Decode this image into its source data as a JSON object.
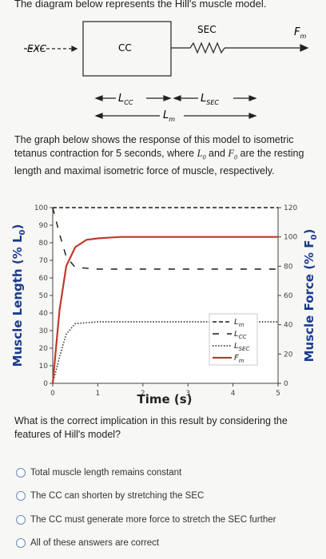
{
  "header": {
    "text": "The diagram below represents the Hill's muscle model."
  },
  "model": {
    "exc": "EXC",
    "cc": "CC",
    "sec": "SEC",
    "fm": "F",
    "fm_sub": "m",
    "lcc": "L",
    "lcc_sub": "CC",
    "lsec": "L",
    "lsec_sub": "SEC",
    "lm": "L",
    "lm_sub": "m"
  },
  "intro": {
    "p1": "The graph below shows the response of this model to isometric tetanus contraction for 5 seconds, where ",
    "l0": "L",
    "l0_sub": "0",
    "and": " and ",
    "f0": "F",
    "f0_sub": "0",
    "p2": " are the resting length and maximal isometric force of muscle, respectively."
  },
  "chart_data": {
    "type": "line",
    "xlabel": "Time (s)",
    "ylabel": "Muscle Length (% L",
    "ylabel_sub": "0",
    "ylabel_close": ")",
    "y2label": "Muscle Force (% F",
    "y2label_sub": "0",
    "y2label_close": ")",
    "xlim": [
      0,
      5
    ],
    "ylim": [
      0,
      100
    ],
    "y2lim": [
      0,
      120
    ],
    "xticks": [
      "0",
      "1",
      "2",
      "3",
      "4",
      "5"
    ],
    "yticks": [
      "0",
      "10",
      "20",
      "30",
      "40",
      "50",
      "60",
      "70",
      "80",
      "90",
      "100"
    ],
    "y2ticks": [
      "0",
      "20",
      "40",
      "60",
      "80",
      "100",
      "120"
    ],
    "series": [
      {
        "name": "L",
        "sub": "m",
        "axis": "left",
        "style": "dashed",
        "color": "#1a1a1a",
        "x": [
          0,
          5
        ],
        "y": [
          100,
          100
        ]
      },
      {
        "name": "L",
        "sub": "CC",
        "axis": "left",
        "style": "dashed",
        "color": "#1a1a1a",
        "x": [
          0,
          0.15,
          0.3,
          0.5,
          1.0,
          2.0,
          3.0,
          4.0,
          5.0
        ],
        "y": [
          100,
          85,
          72,
          66,
          65,
          65,
          65,
          65,
          65
        ]
      },
      {
        "name": "L",
        "sub": "SEC",
        "axis": "left",
        "style": "dotted",
        "color": "#1a1a1a",
        "x": [
          0,
          0.15,
          0.3,
          0.5,
          1.0,
          2.0,
          3.0,
          4.0,
          5.0
        ],
        "y": [
          0,
          15,
          28,
          34,
          35,
          35,
          35,
          35,
          35
        ]
      },
      {
        "name": "F",
        "sub": "m",
        "axis": "right",
        "style": "solid",
        "color": "#c0392b",
        "x": [
          0,
          0.15,
          0.3,
          0.5,
          0.75,
          1.0,
          1.5,
          2.0,
          3.0,
          4.0,
          5.0
        ],
        "y": [
          0,
          50,
          80,
          93,
          98,
          99,
          100,
          100,
          100,
          100,
          100
        ]
      }
    ]
  },
  "question": {
    "text": "What is the correct implication in this result by considering the features of Hill's model?"
  },
  "options": [
    {
      "label": "Total muscle length remains constant"
    },
    {
      "label": "The CC can shorten by stretching the SEC"
    },
    {
      "label": "The CC must generate more force to stretch the SEC further"
    },
    {
      "label": "All of these answers are correct"
    }
  ]
}
